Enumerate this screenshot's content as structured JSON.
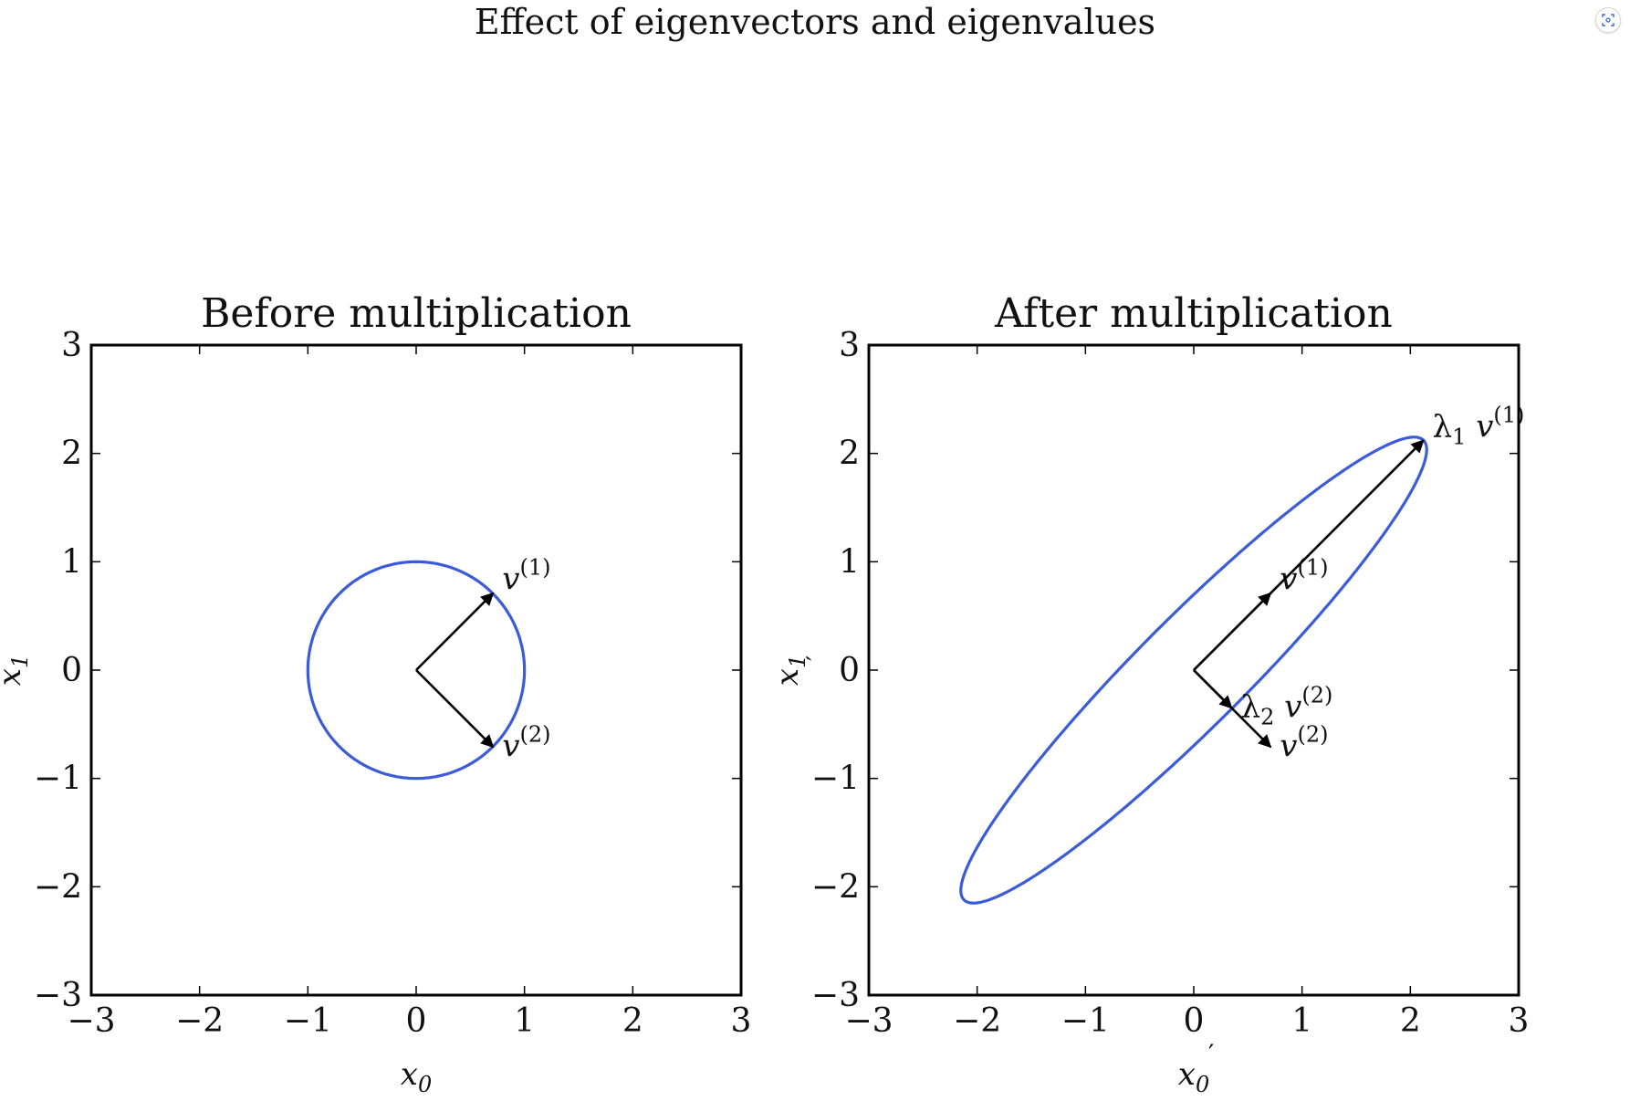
{
  "page_title": "Effect of eigenvectors and eigenvalues",
  "colors": {
    "curve": "#3b5bdb",
    "arrow": "#000000",
    "frame": "#000000"
  },
  "icons": {
    "corner_button": "screenshot-icon"
  },
  "chart_data": [
    {
      "type": "line",
      "title": "Before multiplication",
      "xlabel": "x_0",
      "ylabel": "x_1",
      "xlim": [
        -3,
        3
      ],
      "ylim": [
        -3,
        3
      ],
      "xticks": [
        "−3",
        "−2",
        "−1",
        "0",
        "1",
        "2",
        "3"
      ],
      "yticks": [
        "−3",
        "−2",
        "−1",
        "0",
        "1",
        "2",
        "3"
      ],
      "curve": {
        "kind": "ellipse",
        "center": [
          0,
          0
        ],
        "semi_major": 1.0,
        "semi_minor": 1.0,
        "angle_deg": 0
      },
      "vectors": [
        {
          "from": [
            0,
            0
          ],
          "to": [
            0.71,
            0.71
          ],
          "label": "v",
          "sup": "(1)"
        },
        {
          "from": [
            0,
            0
          ],
          "to": [
            0.71,
            -0.71
          ],
          "label": "v",
          "sup": "(2)"
        }
      ]
    },
    {
      "type": "line",
      "title": "After multiplication",
      "xlabel": "x_0'",
      "ylabel": "x_1'",
      "xlim": [
        -3,
        3
      ],
      "ylim": [
        -3,
        3
      ],
      "xticks": [
        "−3",
        "−2",
        "−1",
        "0",
        "1",
        "2",
        "3"
      ],
      "yticks": [
        "−3",
        "−2",
        "−1",
        "0",
        "1",
        "2",
        "3"
      ],
      "curve": {
        "kind": "ellipse",
        "center": [
          0,
          0
        ],
        "semi_major": 3.0,
        "semi_minor": 0.5,
        "angle_deg": 45
      },
      "vectors": [
        {
          "from": [
            0,
            0
          ],
          "to": [
            0.71,
            0.71
          ],
          "label": "v",
          "sup": "(1)"
        },
        {
          "from": [
            0,
            0
          ],
          "to": [
            0.71,
            -0.71
          ],
          "label": "v",
          "sup": "(2)"
        },
        {
          "from": [
            0,
            0
          ],
          "to": [
            2.12,
            2.12
          ],
          "label": "λ",
          "sub": "1",
          "label2": "v",
          "sup": "(1)"
        },
        {
          "from": [
            0,
            0
          ],
          "to": [
            0.35,
            -0.35
          ],
          "label": "λ",
          "sub": "2",
          "label2": "v",
          "sup": "(2)"
        }
      ]
    }
  ]
}
